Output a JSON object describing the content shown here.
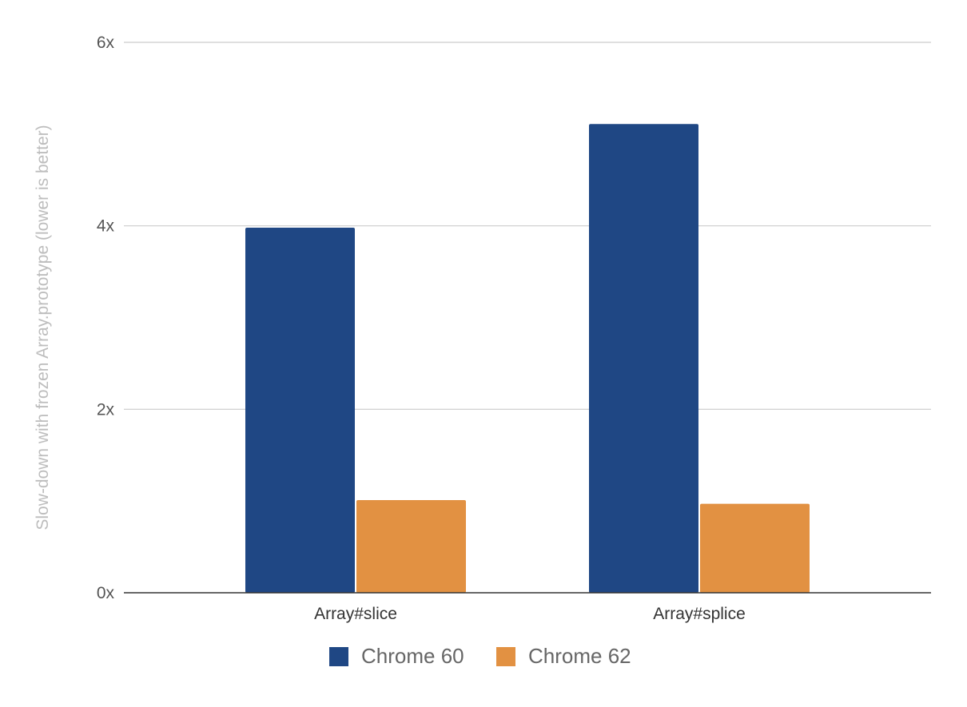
{
  "chart_data": {
    "type": "bar",
    "title": "",
    "xlabel": "",
    "ylabel": "Slow-down with frozen Array.prototype (lower is better)",
    "categories": [
      "Array#slice",
      "Array#splice"
    ],
    "series": [
      {
        "name": "Chrome 60",
        "color": "#1f4784",
        "values": [
          3.98,
          5.11
        ]
      },
      {
        "name": "Chrome 62",
        "color": "#e29142",
        "values": [
          1.01,
          0.97
        ]
      }
    ],
    "ylim": [
      0,
      6
    ],
    "yticks": [
      0,
      2,
      4,
      6
    ],
    "ytick_labels": [
      "0x",
      "2x",
      "4x",
      "6x"
    ],
    "grid": true,
    "legend_position": "bottom"
  }
}
